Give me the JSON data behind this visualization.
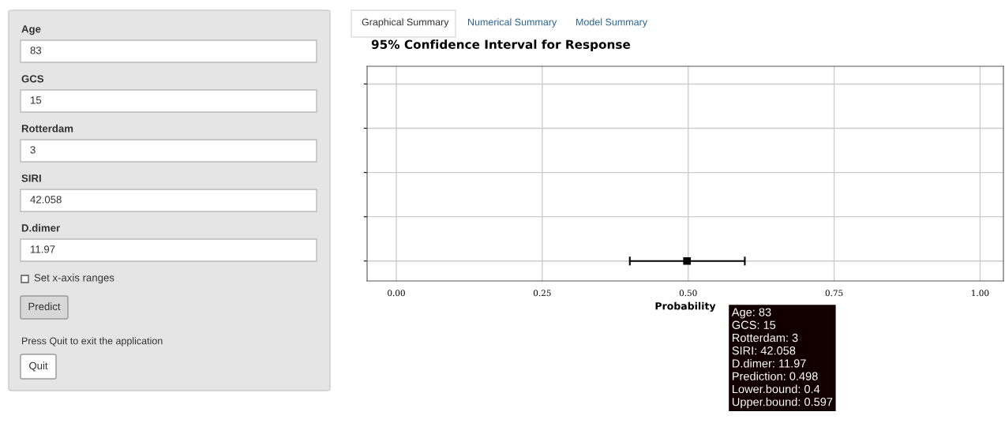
{
  "chart_data": [
    {
      "type": "other",
      "annotations": [
        "Age",
        "83",
        "GCS",
        "15",
        "Rotterdam",
        "3",
        "SIRI",
        "42.058",
        "D.dimer",
        "11.97",
        "Set x-axis ranges",
        "Predict",
        "Press Quit to exit the application",
        "Quit",
        "Graphical Summary",
        "Numerical Summary",
        "Model Summary"
      ]
    },
    {
      "type": "scatter",
      "orientation": "horizontal",
      "title": "95% Confidence Interval for Response",
      "xlabel": "Probability",
      "categories": [
        null,
        null,
        null,
        null,
        null
      ],
      "series": [
        {
          "color": "#000000",
          "values": [
            null,
            null,
            null,
            null,
            0.498
          ],
          "errors": [
            null,
            null,
            null,
            null,
            [
              0.4,
              0.597
            ]
          ]
        }
      ],
      "marker": "square",
      "xlim": [
        -0.05,
        1.04
      ],
      "xticks": [
        {
          "value": 0,
          "label": "0.00"
        },
        {
          "value": 0.25,
          "label": "0.25"
        },
        {
          "value": 0.5,
          "label": "0.50"
        },
        {
          "value": 0.75,
          "label": "0.75"
        },
        {
          "value": 1,
          "label": "1.00"
        }
      ],
      "tick_labels": "x",
      "grid": true,
      "annotations": [
        "Age: 83\nGCS: 15\nRotterdam: 3\nSIRI: 42.058\nD.dimer: 11.97\nPrediction: 0.498\nLower.bound: 0.4\nUpper.bound: 0.597"
      ]
    }
  ]
}
